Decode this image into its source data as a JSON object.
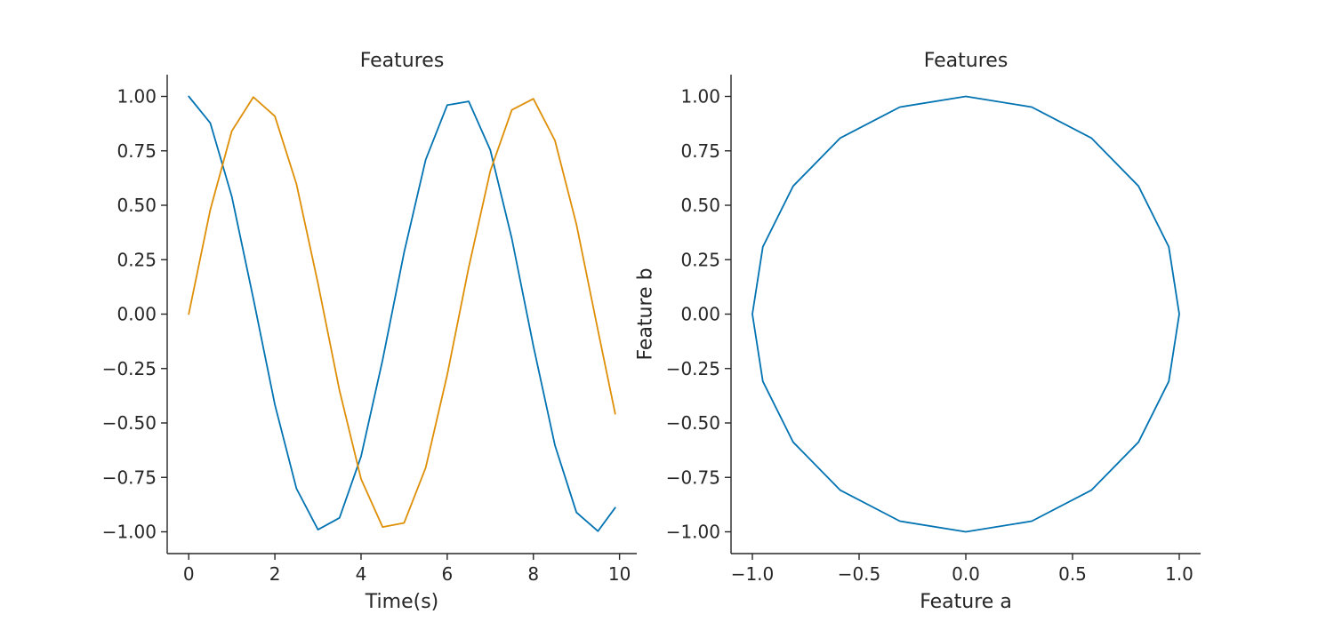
{
  "chart_data": [
    {
      "type": "line",
      "title": "Features",
      "xlabel": "Time(s)",
      "ylabel": "",
      "xlim": [
        -0.5,
        10.4
      ],
      "ylim": [
        -1.1,
        1.1
      ],
      "xticks": [
        0,
        2,
        4,
        6,
        8,
        10
      ],
      "xtick_labels": [
        "0",
        "2",
        "4",
        "6",
        "8",
        "10"
      ],
      "yticks": [
        1.0,
        0.75,
        0.5,
        0.25,
        0.0,
        -0.25,
        -0.5,
        -0.75,
        -1.0
      ],
      "ytick_labels": [
        "1.00",
        "0.75",
        "0.50",
        "0.25",
        "0.00",
        "−0.25",
        "−0.50",
        "−0.75",
        "−1.00"
      ],
      "grid": false,
      "x": [
        0.0,
        0.5,
        1.0,
        1.5,
        2.0,
        2.5,
        3.0,
        3.5,
        4.0,
        4.5,
        5.0,
        5.5,
        6.0,
        6.5,
        7.0,
        7.5,
        8.0,
        8.5,
        9.0,
        9.5,
        9.9
      ],
      "series": [
        {
          "color": "#0173b2",
          "values": [
            1.0,
            0.878,
            0.54,
            0.071,
            -0.416,
            -0.801,
            -0.99,
            -0.936,
            -0.654,
            -0.211,
            0.284,
            0.709,
            0.96,
            0.977,
            0.754,
            0.347,
            -0.146,
            -0.602,
            -0.911,
            -0.997,
            -0.889
          ]
        },
        {
          "color": "#de8f05",
          "values": [
            0.0,
            0.479,
            0.841,
            0.997,
            0.909,
            0.598,
            0.141,
            -0.351,
            -0.757,
            -0.978,
            -0.959,
            -0.706,
            -0.279,
            0.215,
            0.657,
            0.938,
            0.989,
            0.798,
            0.412,
            -0.075,
            -0.458
          ]
        }
      ]
    },
    {
      "type": "line",
      "title": "Features",
      "xlabel": "Feature a",
      "ylabel": "Feature b",
      "xlim": [
        -1.1,
        1.1
      ],
      "ylim": [
        -1.1,
        1.1
      ],
      "xticks": [
        -1.0,
        -0.5,
        0.0,
        0.5,
        1.0
      ],
      "xtick_labels": [
        "−1.0",
        "−0.5",
        "0.0",
        "0.5",
        "1.0"
      ],
      "yticks": [
        1.0,
        0.75,
        0.5,
        0.25,
        0.0,
        -0.25,
        -0.5,
        -0.75,
        -1.0
      ],
      "ytick_labels": [
        "1.00",
        "0.75",
        "0.50",
        "0.25",
        "0.00",
        "−0.25",
        "−0.50",
        "−0.75",
        "−1.00"
      ],
      "grid": false,
      "series": [
        {
          "color": "#0173b2",
          "x": [
            1.0,
            0.951,
            0.809,
            0.588,
            0.309,
            0.0,
            -0.309,
            -0.588,
            -0.809,
            -0.951,
            -1.0,
            -0.951,
            -0.809,
            -0.588,
            -0.309,
            0.0,
            0.309,
            0.588,
            0.809,
            0.951,
            1.0
          ],
          "y": [
            0.0,
            0.309,
            0.588,
            0.809,
            0.951,
            1.0,
            0.951,
            0.809,
            0.588,
            0.309,
            0.0,
            -0.309,
            -0.588,
            -0.809,
            -0.951,
            -1.0,
            -0.951,
            -0.809,
            -0.588,
            -0.309,
            0.0
          ]
        }
      ]
    }
  ]
}
